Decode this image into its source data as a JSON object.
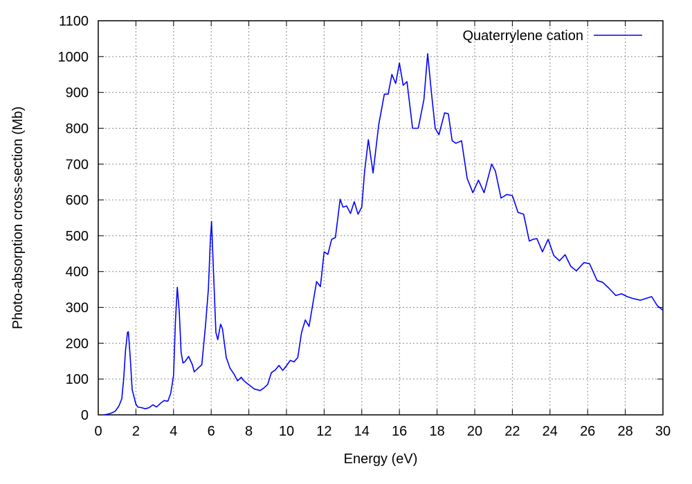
{
  "chart_data": {
    "type": "line",
    "xlabel": "Energy (eV)",
    "ylabel": "Photo-absorption cross-section (Mb)",
    "xlim": [
      0,
      30
    ],
    "ylim": [
      0,
      1100
    ],
    "xticks": [
      0,
      2,
      4,
      6,
      8,
      10,
      12,
      14,
      16,
      18,
      20,
      22,
      24,
      26,
      28,
      30
    ],
    "yticks": [
      0,
      100,
      200,
      300,
      400,
      500,
      600,
      700,
      800,
      900,
      1000,
      1100
    ],
    "grid": true,
    "legend_position": "top-right",
    "series": [
      {
        "name": "Quaterrylene cation",
        "color": "#0000ff",
        "points": [
          [
            0.3,
            0
          ],
          [
            0.5,
            2
          ],
          [
            0.7,
            5
          ],
          [
            0.9,
            10
          ],
          [
            1.1,
            25
          ],
          [
            1.25,
            45
          ],
          [
            1.35,
            100
          ],
          [
            1.45,
            180
          ],
          [
            1.55,
            230
          ],
          [
            1.6,
            232
          ],
          [
            1.7,
            160
          ],
          [
            1.8,
            70
          ],
          [
            1.9,
            50
          ],
          [
            2.0,
            30
          ],
          [
            2.1,
            22
          ],
          [
            2.3,
            20
          ],
          [
            2.5,
            17
          ],
          [
            2.7,
            20
          ],
          [
            2.9,
            28
          ],
          [
            3.1,
            22
          ],
          [
            3.3,
            32
          ],
          [
            3.5,
            40
          ],
          [
            3.7,
            38
          ],
          [
            3.85,
            60
          ],
          [
            4.0,
            110
          ],
          [
            4.1,
            260
          ],
          [
            4.2,
            356
          ],
          [
            4.3,
            290
          ],
          [
            4.4,
            175
          ],
          [
            4.5,
            145
          ],
          [
            4.6,
            148
          ],
          [
            4.8,
            163
          ],
          [
            5.0,
            140
          ],
          [
            5.1,
            120
          ],
          [
            5.3,
            130
          ],
          [
            5.5,
            140
          ],
          [
            5.7,
            250
          ],
          [
            5.85,
            350
          ],
          [
            5.95,
            480
          ],
          [
            6.02,
            540
          ],
          [
            6.1,
            430
          ],
          [
            6.25,
            230
          ],
          [
            6.35,
            210
          ],
          [
            6.5,
            253
          ],
          [
            6.6,
            240
          ],
          [
            6.8,
            160
          ],
          [
            7.0,
            130
          ],
          [
            7.2,
            115
          ],
          [
            7.4,
            95
          ],
          [
            7.6,
            105
          ],
          [
            7.7,
            97
          ],
          [
            7.9,
            88
          ],
          [
            8.1,
            80
          ],
          [
            8.3,
            72
          ],
          [
            8.6,
            68
          ],
          [
            8.8,
            75
          ],
          [
            9.0,
            85
          ],
          [
            9.2,
            118
          ],
          [
            9.4,
            125
          ],
          [
            9.6,
            138
          ],
          [
            9.8,
            124
          ],
          [
            10.0,
            137
          ],
          [
            10.2,
            152
          ],
          [
            10.4,
            148
          ],
          [
            10.6,
            160
          ],
          [
            10.8,
            230
          ],
          [
            11.0,
            265
          ],
          [
            11.2,
            247
          ],
          [
            11.4,
            310
          ],
          [
            11.6,
            372
          ],
          [
            11.8,
            358
          ],
          [
            12.0,
            455
          ],
          [
            12.2,
            448
          ],
          [
            12.4,
            490
          ],
          [
            12.6,
            495
          ],
          [
            12.85,
            602
          ],
          [
            13.0,
            580
          ],
          [
            13.2,
            583
          ],
          [
            13.4,
            562
          ],
          [
            13.6,
            595
          ],
          [
            13.8,
            560
          ],
          [
            14.0,
            580
          ],
          [
            14.15,
            680
          ],
          [
            14.35,
            768
          ],
          [
            14.6,
            675
          ],
          [
            14.9,
            810
          ],
          [
            15.2,
            895
          ],
          [
            15.4,
            895
          ],
          [
            15.6,
            950
          ],
          [
            15.8,
            925
          ],
          [
            16.0,
            982
          ],
          [
            16.2,
            920
          ],
          [
            16.4,
            930
          ],
          [
            16.7,
            800
          ],
          [
            17.0,
            800
          ],
          [
            17.3,
            880
          ],
          [
            17.5,
            1008
          ],
          [
            17.7,
            900
          ],
          [
            17.9,
            800
          ],
          [
            18.1,
            782
          ],
          [
            18.4,
            843
          ],
          [
            18.6,
            840
          ],
          [
            18.8,
            765
          ],
          [
            19.0,
            758
          ],
          [
            19.3,
            765
          ],
          [
            19.6,
            660
          ],
          [
            19.9,
            620
          ],
          [
            20.2,
            655
          ],
          [
            20.5,
            620
          ],
          [
            20.9,
            700
          ],
          [
            21.1,
            680
          ],
          [
            21.4,
            605
          ],
          [
            21.7,
            615
          ],
          [
            22.0,
            612
          ],
          [
            22.3,
            565
          ],
          [
            22.6,
            560
          ],
          [
            22.9,
            485
          ],
          [
            23.1,
            490
          ],
          [
            23.3,
            492
          ],
          [
            23.6,
            455
          ],
          [
            23.9,
            490
          ],
          [
            24.2,
            445
          ],
          [
            24.5,
            430
          ],
          [
            24.8,
            447
          ],
          [
            25.1,
            415
          ],
          [
            25.4,
            402
          ],
          [
            25.8,
            425
          ],
          [
            26.1,
            422
          ],
          [
            26.5,
            375
          ],
          [
            26.8,
            370
          ],
          [
            27.1,
            355
          ],
          [
            27.5,
            333
          ],
          [
            27.8,
            338
          ],
          [
            28.1,
            330
          ],
          [
            28.4,
            325
          ],
          [
            28.8,
            320
          ],
          [
            29.1,
            325
          ],
          [
            29.4,
            330
          ],
          [
            29.7,
            305
          ],
          [
            30.0,
            292
          ]
        ]
      }
    ]
  }
}
